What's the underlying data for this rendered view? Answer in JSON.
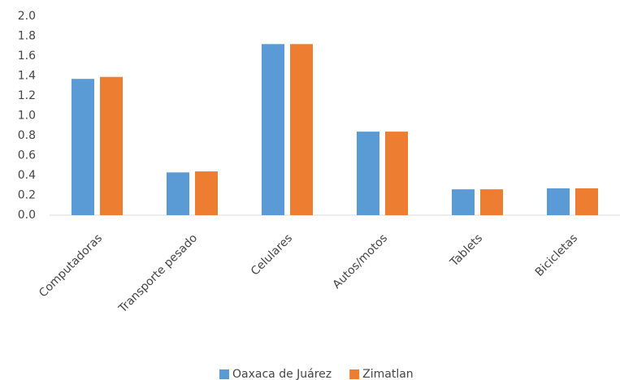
{
  "chart_data": {
    "type": "bar",
    "categories": [
      "Computadoras",
      "Transporte pesado",
      "Celulares",
      "Autos/motos",
      "Tablets",
      "Bicicletas"
    ],
    "series": [
      {
        "name": "Oaxaca de Juárez",
        "color": "#5b9bd5",
        "values": [
          1.37,
          0.43,
          1.72,
          0.84,
          0.26,
          0.27
        ]
      },
      {
        "name": "Zimatlan",
        "color": "#ed7d31",
        "values": [
          1.39,
          0.44,
          1.72,
          0.84,
          0.26,
          0.27
        ]
      }
    ],
    "ylim": [
      0,
      2
    ],
    "yticks": [
      {
        "value": 0,
        "label": "0.0"
      },
      0.2,
      0.4,
      0.6,
      0.8,
      {
        "value": 1,
        "label": "1.0"
      },
      1.2,
      1.4,
      1.6,
      1.8,
      {
        "value": 2,
        "label": "2.0"
      }
    ],
    "grid": false,
    "legend": "bottom"
  }
}
